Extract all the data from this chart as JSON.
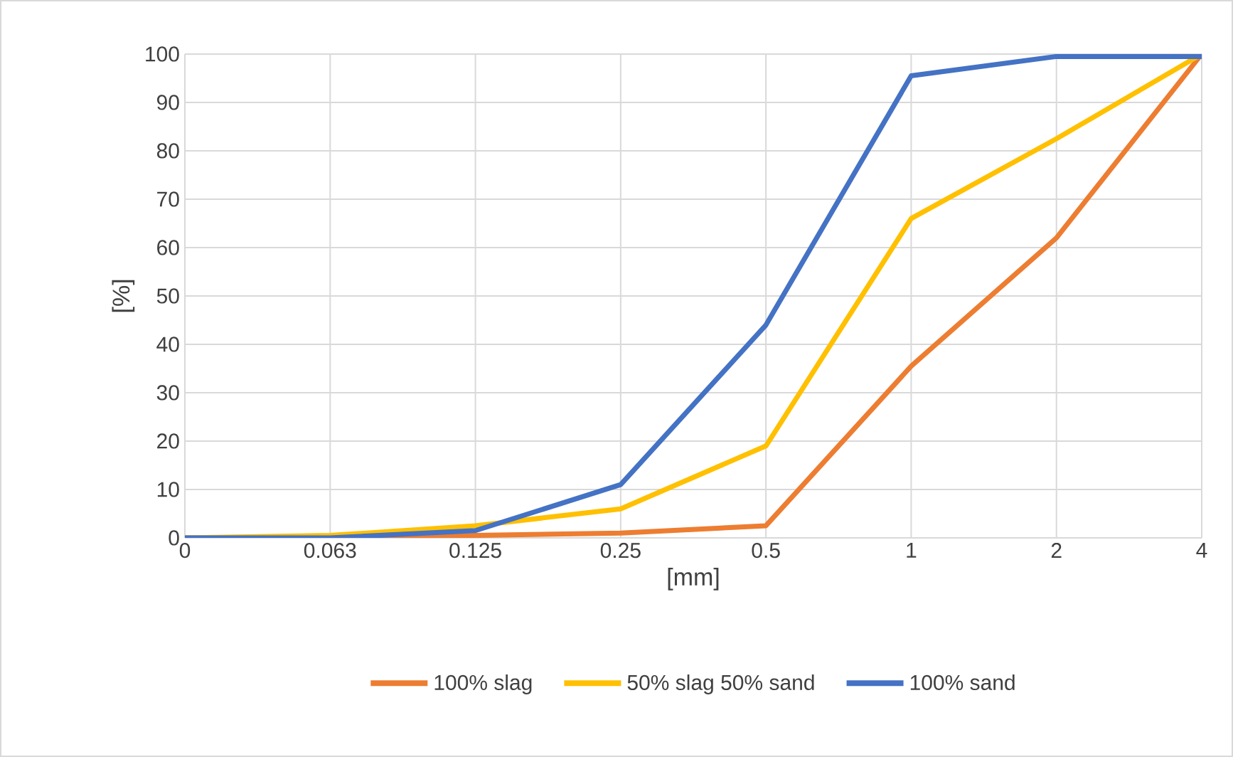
{
  "chart_data": {
    "type": "line",
    "xlabel": "[mm]",
    "ylabel": "[%]",
    "categories": [
      "0",
      "0.063",
      "0.125",
      "0.25",
      "0.5",
      "1",
      "2",
      "4"
    ],
    "series": [
      {
        "name": "100% slag",
        "color": "#ed7d31",
        "values": [
          0,
          0,
          0.5,
          1,
          2.5,
          35.5,
          62,
          100
        ]
      },
      {
        "name": "50% slag  50% sand",
        "color": "#ffc000",
        "values": [
          0,
          0.5,
          2.5,
          6,
          19,
          66,
          82.5,
          100
        ]
      },
      {
        "name": "100% sand",
        "color": "#4472c4",
        "values": [
          0,
          0,
          1.5,
          11,
          44,
          95.5,
          99.5,
          99.5
        ]
      }
    ],
    "ylim": [
      0,
      100
    ],
    "yticks": [
      0,
      10,
      20,
      30,
      40,
      50,
      60,
      70,
      80,
      90,
      100
    ],
    "grid": true,
    "legend": "bottom",
    "marker": "none",
    "line_style": "solid"
  }
}
